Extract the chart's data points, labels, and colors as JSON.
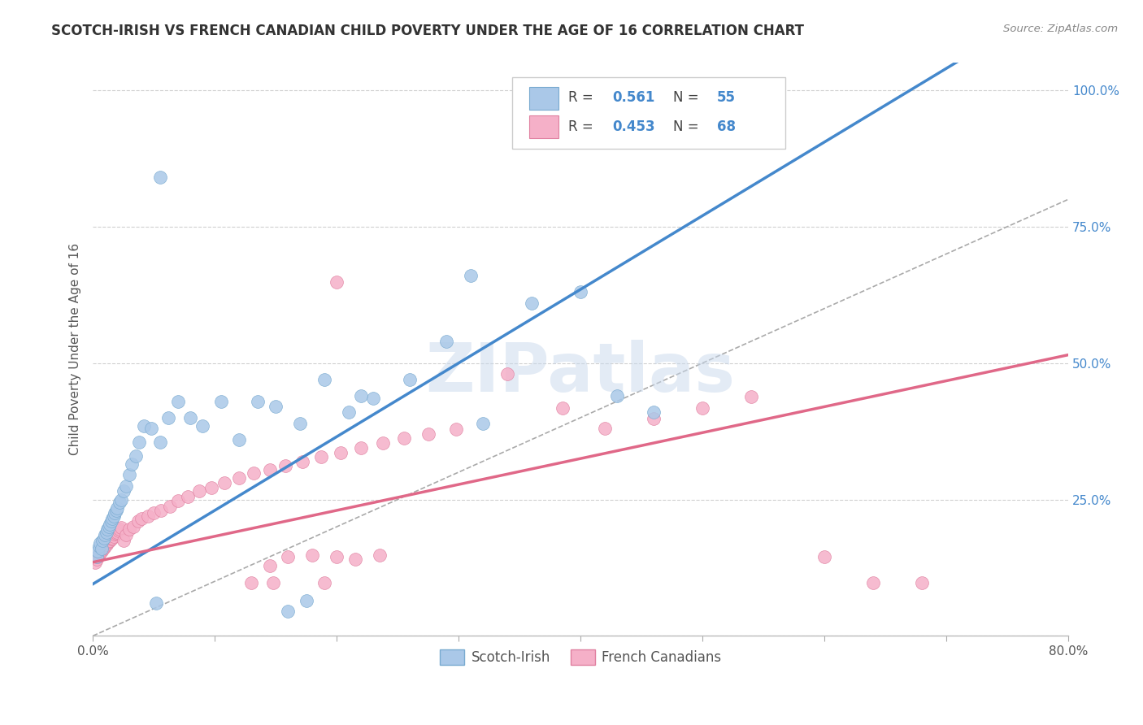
{
  "title": "SCOTCH-IRISH VS FRENCH CANADIAN CHILD POVERTY UNDER THE AGE OF 16 CORRELATION CHART",
  "source_text": "Source: ZipAtlas.com",
  "ylabel": "Child Poverty Under the Age of 16",
  "xlim": [
    0.0,
    0.8
  ],
  "ylim": [
    0.0,
    1.05
  ],
  "xticks": [
    0.0,
    0.1,
    0.2,
    0.3,
    0.4,
    0.5,
    0.6,
    0.7,
    0.8
  ],
  "xticklabels": [
    "0.0%",
    "",
    "",
    "",
    "",
    "",
    "",
    "",
    "80.0%"
  ],
  "ytick_positions": [
    0.0,
    0.25,
    0.5,
    0.75,
    1.0
  ],
  "ytick_labels": [
    "",
    "25.0%",
    "50.0%",
    "75.0%",
    "100.0%"
  ],
  "watermark": "ZIPatlas",
  "background_color": "#ffffff",
  "grid_color": "#d0d0d0",
  "scotch_irish_color": "#aac8e8",
  "scotch_irish_edge": "#78aad0",
  "scotch_irish_line": "#4488cc",
  "french_color": "#f5b0c8",
  "french_edge": "#e080a0",
  "french_line": "#e06888",
  "si_R": "0.561",
  "si_N": "55",
  "fc_R": "0.453",
  "fc_N": "68",
  "si_x": [
    0.003,
    0.004,
    0.005,
    0.006,
    0.007,
    0.008,
    0.009,
    0.01,
    0.011,
    0.012,
    0.013,
    0.014,
    0.015,
    0.016,
    0.017,
    0.018,
    0.019,
    0.02,
    0.022,
    0.023,
    0.025,
    0.027,
    0.03,
    0.032,
    0.035,
    0.038,
    0.042,
    0.048,
    0.055,
    0.062,
    0.07,
    0.08,
    0.09,
    0.105,
    0.12,
    0.135,
    0.15,
    0.17,
    0.19,
    0.21,
    0.23,
    0.26,
    0.29,
    0.32,
    0.16,
    0.175,
    0.22,
    0.36,
    0.4,
    0.43,
    0.31,
    0.055,
    0.052,
    0.46,
    0.48
  ],
  "si_y": [
    0.145,
    0.155,
    0.165,
    0.17,
    0.16,
    0.175,
    0.18,
    0.185,
    0.19,
    0.195,
    0.2,
    0.205,
    0.21,
    0.215,
    0.22,
    0.225,
    0.23,
    0.235,
    0.245,
    0.25,
    0.265,
    0.275,
    0.295,
    0.315,
    0.33,
    0.355,
    0.385,
    0.38,
    0.355,
    0.4,
    0.43,
    0.4,
    0.385,
    0.43,
    0.36,
    0.43,
    0.42,
    0.39,
    0.47,
    0.41,
    0.435,
    0.47,
    0.54,
    0.39,
    0.045,
    0.065,
    0.44,
    0.61,
    0.63,
    0.44,
    0.66,
    0.84,
    0.06,
    0.41,
    1.0
  ],
  "fc_x": [
    0.002,
    0.003,
    0.004,
    0.005,
    0.006,
    0.007,
    0.008,
    0.009,
    0.01,
    0.011,
    0.012,
    0.013,
    0.014,
    0.015,
    0.016,
    0.017,
    0.018,
    0.019,
    0.02,
    0.021,
    0.022,
    0.023,
    0.025,
    0.027,
    0.03,
    0.033,
    0.037,
    0.04,
    0.045,
    0.05,
    0.056,
    0.063,
    0.07,
    0.078,
    0.087,
    0.097,
    0.108,
    0.12,
    0.132,
    0.145,
    0.158,
    0.172,
    0.187,
    0.203,
    0.22,
    0.238,
    0.255,
    0.275,
    0.298,
    0.145,
    0.16,
    0.18,
    0.2,
    0.215,
    0.235,
    0.385,
    0.42,
    0.46,
    0.5,
    0.54,
    0.13,
    0.148,
    0.19,
    0.6,
    0.64,
    0.68,
    0.2,
    0.34
  ],
  "fc_y": [
    0.135,
    0.14,
    0.145,
    0.15,
    0.152,
    0.155,
    0.158,
    0.162,
    0.165,
    0.168,
    0.17,
    0.173,
    0.175,
    0.178,
    0.18,
    0.183,
    0.186,
    0.188,
    0.19,
    0.193,
    0.196,
    0.198,
    0.175,
    0.185,
    0.195,
    0.2,
    0.21,
    0.215,
    0.22,
    0.225,
    0.23,
    0.238,
    0.248,
    0.255,
    0.265,
    0.272,
    0.28,
    0.29,
    0.298,
    0.305,
    0.312,
    0.32,
    0.328,
    0.336,
    0.345,
    0.353,
    0.362,
    0.37,
    0.379,
    0.128,
    0.145,
    0.148,
    0.145,
    0.14,
    0.148,
    0.418,
    0.38,
    0.398,
    0.418,
    0.438,
    0.098,
    0.098,
    0.098,
    0.145,
    0.098,
    0.098,
    0.648,
    0.48
  ]
}
